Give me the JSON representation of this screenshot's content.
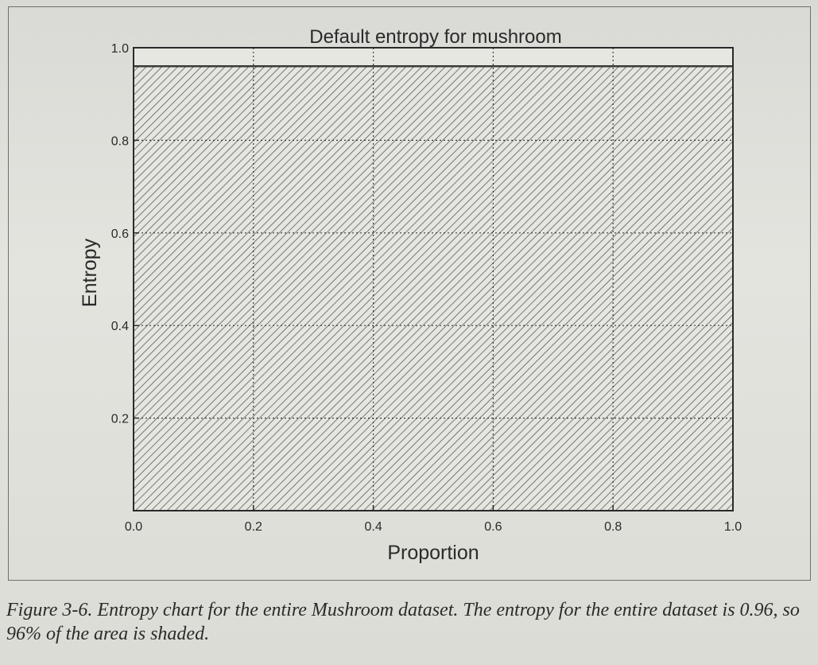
{
  "chart_data": {
    "type": "area",
    "title": "Default entropy for mushroom",
    "xlabel": "Proportion",
    "ylabel": "Entropy",
    "x": [
      0.0,
      1.0
    ],
    "values": [
      0.96,
      0.96
    ],
    "xlim": [
      0.0,
      1.0
    ],
    "ylim": [
      0.0,
      1.0
    ],
    "xticks": [
      "0.0",
      "0.2",
      "0.4",
      "0.6",
      "0.8",
      "1.0"
    ],
    "yticks": [
      "1.0",
      "0.8",
      "0.6",
      "0.4",
      "0.2"
    ],
    "grid": true,
    "fill": "hatched"
  },
  "caption": "Figure 3-6. Entropy chart for the entire Mushroom dataset. The entropy for the entire dataset is 0.96, so 96% of the area is shaded.",
  "colors": {
    "paper": "#dcdcd6",
    "ink": "#2a2a2a",
    "hatch": "#5a5a5a",
    "grid": "#3a3a3a"
  }
}
